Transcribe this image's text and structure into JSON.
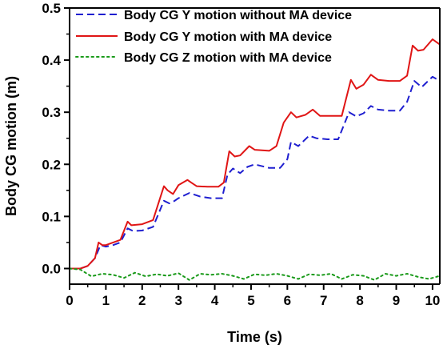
{
  "chart_data": {
    "type": "line",
    "xlabel": "Time (s)",
    "ylabel": "Body CG motion (m)",
    "xlim": [
      0,
      10.2
    ],
    "ylim": [
      -0.03,
      0.5
    ],
    "xticks": [
      0,
      1,
      2,
      3,
      4,
      5,
      6,
      7,
      8,
      9,
      10
    ],
    "yticks": [
      0.0,
      0.1,
      0.2,
      0.3,
      0.4,
      0.5
    ],
    "ytick_labels": [
      "0.0",
      "0.1",
      "0.2",
      "0.3",
      "0.4",
      "0.5"
    ],
    "grid": false,
    "legend_position": "top-left",
    "series": [
      {
        "name": "Body CG Y motion without MA device",
        "color": "#1f1fd0",
        "dash": "dashed",
        "x": [
          0,
          0.3,
          0.5,
          0.7,
          0.85,
          1.0,
          1.2,
          1.4,
          1.6,
          1.75,
          2.0,
          2.3,
          2.6,
          2.75,
          2.85,
          3.0,
          3.3,
          3.6,
          3.9,
          4.2,
          4.35,
          4.5,
          4.7,
          4.9,
          5.1,
          5.5,
          5.8,
          6.0,
          6.1,
          6.3,
          6.6,
          6.8,
          7.1,
          7.4,
          7.7,
          7.9,
          8.1,
          8.3,
          8.5,
          8.8,
          9.1,
          9.3,
          9.5,
          9.7,
          10.0,
          10.2
        ],
        "y": [
          0.0,
          0.0,
          0.005,
          0.02,
          0.045,
          0.042,
          0.045,
          0.05,
          0.077,
          0.072,
          0.073,
          0.08,
          0.13,
          0.125,
          0.128,
          0.135,
          0.145,
          0.138,
          0.135,
          0.135,
          0.18,
          0.192,
          0.183,
          0.195,
          0.2,
          0.193,
          0.193,
          0.21,
          0.243,
          0.235,
          0.255,
          0.25,
          0.248,
          0.248,
          0.3,
          0.292,
          0.298,
          0.312,
          0.305,
          0.303,
          0.303,
          0.32,
          0.36,
          0.348,
          0.368,
          0.36
        ]
      },
      {
        "name": "Body CG Y motion with MA device",
        "color": "#e01515",
        "dash": "solid",
        "x": [
          0,
          0.3,
          0.5,
          0.7,
          0.8,
          0.9,
          1.0,
          1.2,
          1.4,
          1.6,
          1.7,
          2.0,
          2.3,
          2.6,
          2.7,
          2.85,
          3.0,
          3.25,
          3.35,
          3.5,
          3.8,
          4.1,
          4.25,
          4.4,
          4.55,
          4.7,
          4.95,
          5.1,
          5.5,
          5.7,
          5.9,
          6.1,
          6.25,
          6.5,
          6.7,
          6.9,
          7.2,
          7.5,
          7.75,
          7.9,
          8.1,
          8.3,
          8.5,
          8.8,
          9.1,
          9.3,
          9.45,
          9.6,
          9.75,
          10.0,
          10.2
        ],
        "y": [
          0.0,
          0.0,
          0.005,
          0.02,
          0.05,
          0.045,
          0.045,
          0.05,
          0.055,
          0.09,
          0.083,
          0.085,
          0.093,
          0.158,
          0.15,
          0.143,
          0.16,
          0.17,
          0.165,
          0.158,
          0.157,
          0.157,
          0.165,
          0.225,
          0.215,
          0.217,
          0.235,
          0.228,
          0.226,
          0.235,
          0.28,
          0.3,
          0.29,
          0.295,
          0.305,
          0.293,
          0.293,
          0.293,
          0.362,
          0.345,
          0.353,
          0.372,
          0.362,
          0.36,
          0.36,
          0.37,
          0.428,
          0.418,
          0.42,
          0.44,
          0.43
        ]
      },
      {
        "name": "Body CG Z motion with MA device",
        "color": "#1a9a1a",
        "dash": "dotted",
        "x": [
          0,
          0.3,
          0.6,
          0.9,
          1.2,
          1.5,
          1.8,
          2.1,
          2.4,
          2.7,
          3.0,
          3.3,
          3.6,
          3.9,
          4.2,
          4.5,
          4.8,
          5.1,
          5.4,
          5.7,
          6.0,
          6.3,
          6.6,
          6.9,
          7.2,
          7.5,
          7.8,
          8.1,
          8.4,
          8.7,
          9.0,
          9.3,
          9.6,
          9.9,
          10.2
        ],
        "y": [
          0.0,
          -0.002,
          -0.015,
          -0.01,
          -0.012,
          -0.018,
          -0.008,
          -0.015,
          -0.011,
          -0.014,
          -0.009,
          -0.022,
          -0.01,
          -0.012,
          -0.01,
          -0.014,
          -0.02,
          -0.011,
          -0.013,
          -0.01,
          -0.014,
          -0.02,
          -0.011,
          -0.013,
          -0.01,
          -0.02,
          -0.012,
          -0.014,
          -0.022,
          -0.01,
          -0.014,
          -0.01,
          -0.016,
          -0.02,
          -0.014
        ]
      }
    ]
  }
}
